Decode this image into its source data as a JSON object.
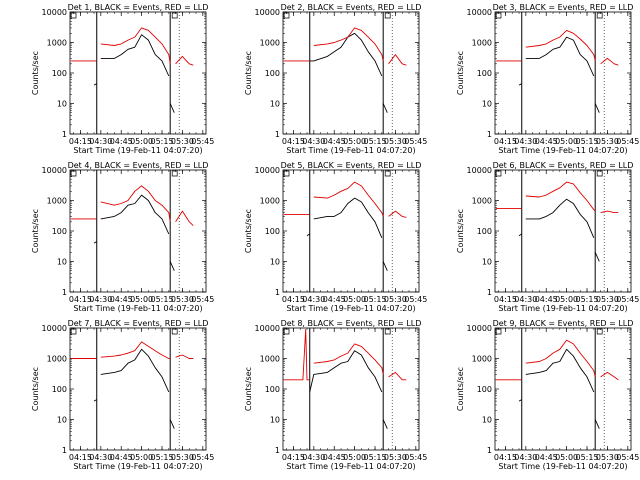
{
  "figure": {
    "xlabel": "Start Time (19-Feb-11 04:07:20)",
    "ylabel": "Counts/sec",
    "x_ticks": [
      "04:15",
      "04:30",
      "04:45",
      "05:00",
      "05:15",
      "05:30",
      "05:45"
    ],
    "y_ticks": [
      "1",
      "10",
      "100",
      "1000",
      "10000"
    ],
    "colors": {
      "events": "#000000",
      "lld": "#e00000"
    }
  },
  "chart_data": [
    {
      "type": "line",
      "title": "Det 1, BLACK = Events, RED = LLD",
      "ylim": [
        1,
        10000
      ],
      "yscale": "log",
      "x_range": [
        "04:07:20",
        "05:47:20"
      ],
      "gap": [
        "04:27:00",
        "05:21:00"
      ],
      "series": [
        {
          "name": "BLACK = Events",
          "x": [
            "04:25",
            "04:27",
            "04:27",
            "04:30",
            "04:40",
            "04:45",
            "04:50",
            "04:55",
            "05:00",
            "05:05",
            "05:10",
            "05:15",
            "05:20",
            "05:21",
            "05:21",
            "05:24"
          ],
          "y": [
            40,
            45,
            null,
            300,
            300,
            400,
            600,
            700,
            1800,
            1200,
            400,
            250,
            80,
            null,
            10,
            5
          ]
        },
        {
          "name": "RED = LLD",
          "x": [
            "04:08",
            "04:15",
            "04:27",
            "04:27",
            "04:30",
            "04:40",
            "04:45",
            "04:50",
            "04:55",
            "05:00",
            "05:05",
            "05:10",
            "05:15",
            "05:20",
            "05:21",
            "05:21",
            "05:25",
            "05:30",
            "05:35",
            "05:38"
          ],
          "y": [
            250,
            250,
            250,
            null,
            900,
            800,
            900,
            1200,
            1500,
            3000,
            2500,
            1500,
            900,
            400,
            200,
            null,
            200,
            350,
            200,
            180
          ]
        }
      ]
    },
    {
      "type": "line",
      "title": "Det 2, BLACK = Events, RED = LLD",
      "ylim": [
        1,
        10000
      ],
      "yscale": "log",
      "x_range": [
        "04:07:20",
        "05:47:20"
      ],
      "gap": [
        "04:27:00",
        "05:21:00"
      ],
      "series": [
        {
          "name": "BLACK = Events",
          "x": [
            "04:27",
            "04:30",
            "04:40",
            "04:45",
            "04:50",
            "04:55",
            "05:00",
            "05:05",
            "05:10",
            "05:15",
            "05:20",
            "05:21",
            "05:21",
            "05:24"
          ],
          "y": [
            250,
            250,
            350,
            500,
            700,
            1500,
            2000,
            1200,
            500,
            250,
            80,
            null,
            10,
            5
          ]
        },
        {
          "name": "RED = LLD",
          "x": [
            "04:08",
            "04:15",
            "04:27",
            "04:27",
            "04:30",
            "04:40",
            "04:45",
            "04:50",
            "04:55",
            "05:00",
            "05:05",
            "05:10",
            "05:15",
            "05:20",
            "05:21",
            "05:21",
            "05:25",
            "05:30",
            "05:35",
            "05:38"
          ],
          "y": [
            250,
            250,
            250,
            null,
            800,
            900,
            1000,
            1200,
            1500,
            3000,
            2500,
            1500,
            900,
            400,
            250,
            null,
            200,
            400,
            200,
            180
          ]
        }
      ]
    },
    {
      "type": "line",
      "title": "Det 3, BLACK = Events, RED = LLD",
      "ylim": [
        1,
        10000
      ],
      "yscale": "log",
      "x_range": [
        "04:07:20",
        "05:47:20"
      ],
      "gap": [
        "04:27:00",
        "05:21:00"
      ],
      "series": [
        {
          "name": "BLACK = Events",
          "x": [
            "04:25",
            "04:27",
            "04:27",
            "04:30",
            "04:40",
            "04:45",
            "04:50",
            "04:55",
            "05:00",
            "05:05",
            "05:10",
            "05:15",
            "05:20",
            "05:21",
            "05:21",
            "05:24"
          ],
          "y": [
            40,
            45,
            null,
            300,
            300,
            400,
            600,
            700,
            1500,
            1200,
            400,
            250,
            80,
            null,
            10,
            5
          ]
        },
        {
          "name": "RED = LLD",
          "x": [
            "04:08",
            "04:15",
            "04:27",
            "04:27",
            "04:30",
            "04:40",
            "04:45",
            "04:50",
            "04:55",
            "05:00",
            "05:05",
            "05:10",
            "05:15",
            "05:20",
            "05:21",
            "05:21",
            "05:25",
            "05:30",
            "05:35",
            "05:38"
          ],
          "y": [
            250,
            250,
            250,
            null,
            700,
            800,
            900,
            1200,
            1500,
            2500,
            2000,
            1300,
            800,
            400,
            250,
            null,
            200,
            300,
            200,
            180
          ]
        }
      ]
    },
    {
      "type": "line",
      "title": "Det 4, BLACK = Events, RED = LLD",
      "ylim": [
        1,
        10000
      ],
      "yscale": "log",
      "x_range": [
        "04:07:20",
        "05:47:20"
      ],
      "gap": [
        "04:27:00",
        "05:21:00"
      ],
      "series": [
        {
          "name": "BLACK = Events",
          "x": [
            "04:25",
            "04:27",
            "04:27",
            "04:30",
            "04:40",
            "04:45",
            "04:50",
            "04:55",
            "05:00",
            "05:05",
            "05:10",
            "05:15",
            "05:20",
            "05:21",
            "05:21",
            "05:24"
          ],
          "y": [
            40,
            45,
            null,
            250,
            300,
            400,
            700,
            800,
            1500,
            1000,
            400,
            250,
            80,
            null,
            10,
            5
          ]
        },
        {
          "name": "RED = LLD",
          "x": [
            "04:08",
            "04:15",
            "04:27",
            "04:27",
            "04:30",
            "04:40",
            "04:45",
            "04:50",
            "04:55",
            "05:00",
            "05:05",
            "05:10",
            "05:15",
            "05:20",
            "05:21",
            "05:21",
            "05:25",
            "05:30",
            "05:35",
            "05:38"
          ],
          "y": [
            250,
            250,
            250,
            null,
            900,
            700,
            800,
            1000,
            2000,
            3000,
            2000,
            1000,
            700,
            400,
            200,
            null,
            200,
            450,
            200,
            150
          ]
        }
      ]
    },
    {
      "type": "line",
      "title": "Det 5, BLACK = Events, RED = LLD",
      "ylim": [
        1,
        10000
      ],
      "yscale": "log",
      "x_range": [
        "04:07:20",
        "05:47:20"
      ],
      "gap": [
        "04:27:00",
        "05:21:00"
      ],
      "series": [
        {
          "name": "BLACK = Events",
          "x": [
            "04:25",
            "04:27",
            "04:27",
            "04:30",
            "04:40",
            "04:45",
            "04:50",
            "04:55",
            "05:00",
            "05:05",
            "05:10",
            "05:15",
            "05:20",
            "05:21",
            "05:21",
            "05:24"
          ],
          "y": [
            70,
            80,
            null,
            250,
            300,
            300,
            400,
            800,
            1200,
            900,
            400,
            200,
            60,
            null,
            10,
            5
          ]
        },
        {
          "name": "RED = LLD",
          "x": [
            "04:08",
            "04:15",
            "04:27",
            "04:27",
            "04:30",
            "04:40",
            "04:45",
            "04:50",
            "04:55",
            "05:00",
            "05:05",
            "05:10",
            "05:15",
            "05:20",
            "05:21",
            "05:21",
            "05:25",
            "05:30",
            "05:35",
            "05:38"
          ],
          "y": [
            350,
            350,
            350,
            null,
            1300,
            1200,
            1500,
            2000,
            2500,
            4000,
            3000,
            1500,
            800,
            400,
            300,
            null,
            300,
            450,
            300,
            280
          ]
        }
      ]
    },
    {
      "type": "line",
      "title": "Det 6, BLACK = Events, RED = LLD",
      "ylim": [
        1,
        10000
      ],
      "yscale": "log",
      "x_range": [
        "04:07:20",
        "05:47:20"
      ],
      "gap": [
        "04:27:00",
        "05:21:00"
      ],
      "series": [
        {
          "name": "BLACK = Events",
          "x": [
            "04:25",
            "04:27",
            "04:27",
            "04:30",
            "04:40",
            "04:45",
            "04:50",
            "04:55",
            "05:00",
            "05:05",
            "05:10",
            "05:15",
            "05:20",
            "05:21",
            "05:21",
            "05:24"
          ],
          "y": [
            70,
            80,
            null,
            250,
            250,
            300,
            400,
            700,
            1100,
            800,
            350,
            200,
            60,
            null,
            20,
            10
          ]
        },
        {
          "name": "RED = LLD",
          "x": [
            "04:08",
            "04:15",
            "04:27",
            "04:27",
            "04:30",
            "04:40",
            "04:45",
            "04:50",
            "04:55",
            "05:00",
            "05:05",
            "05:10",
            "05:15",
            "05:20",
            "05:21",
            "05:21",
            "05:25",
            "05:30",
            "05:35",
            "05:38"
          ],
          "y": [
            550,
            550,
            550,
            null,
            1400,
            1300,
            1500,
            2000,
            2600,
            4000,
            3500,
            1800,
            1000,
            500,
            450,
            null,
            400,
            450,
            400,
            400
          ]
        }
      ]
    },
    {
      "type": "line",
      "title": "Det 7, BLACK = Events, RED = LLD",
      "ylim": [
        1,
        10000
      ],
      "yscale": "log",
      "x_range": [
        "04:07:20",
        "05:47:20"
      ],
      "gap": [
        "04:27:00",
        "05:21:00"
      ],
      "series": [
        {
          "name": "BLACK = Events",
          "x": [
            "04:25",
            "04:27",
            "04:27",
            "04:30",
            "04:40",
            "04:45",
            "04:50",
            "04:55",
            "05:00",
            "05:05",
            "05:10",
            "05:15",
            "05:20",
            "05:21",
            "05:21",
            "05:24"
          ],
          "y": [
            40,
            45,
            null,
            300,
            350,
            400,
            700,
            900,
            2000,
            1200,
            500,
            250,
            80,
            null,
            10,
            5
          ]
        },
        {
          "name": "RED = LLD",
          "x": [
            "04:08",
            "04:15",
            "04:27",
            "04:27",
            "04:30",
            "04:40",
            "04:45",
            "04:50",
            "04:55",
            "05:00",
            "05:05",
            "05:10",
            "05:15",
            "05:20",
            "05:21",
            "05:21",
            "05:25",
            "05:30",
            "05:35",
            "05:38"
          ],
          "y": [
            1000,
            1000,
            1000,
            null,
            1100,
            1200,
            1300,
            1500,
            1800,
            3500,
            2500,
            1800,
            1300,
            1000,
            1000,
            null,
            1100,
            1300,
            1000,
            1000
          ]
        }
      ]
    },
    {
      "type": "line",
      "title": "Det 8, BLACK = Events, RED = LLD",
      "ylim": [
        1,
        10000
      ],
      "yscale": "log",
      "x_range": [
        "04:07:20",
        "05:47:20"
      ],
      "gap": [
        "04:27:00",
        "05:21:00"
      ],
      "series": [
        {
          "name": "BLACK = Events",
          "x": [
            "04:27",
            "04:30",
            "04:40",
            "04:45",
            "04:50",
            "04:55",
            "05:00",
            "05:05",
            "05:10",
            "05:15",
            "05:20",
            "05:21",
            "05:21",
            "05:24"
          ],
          "y": [
            80,
            300,
            350,
            500,
            700,
            800,
            1800,
            1300,
            500,
            250,
            80,
            null,
            10,
            5
          ]
        },
        {
          "name": "RED = LLD",
          "x": [
            "04:08",
            "04:15",
            "04:22",
            "04:24",
            "04:25",
            "04:27",
            "04:27",
            "04:30",
            "04:40",
            "04:45",
            "04:50",
            "04:55",
            "05:00",
            "05:05",
            "05:10",
            "05:15",
            "05:20",
            "05:21",
            "05:21",
            "05:25",
            "05:30",
            "05:35",
            "05:38"
          ],
          "y": [
            200,
            200,
            200,
            9000,
            200,
            200,
            null,
            700,
            800,
            900,
            1200,
            1500,
            3000,
            2500,
            1500,
            900,
            500,
            300,
            null,
            250,
            350,
            200,
            200
          ]
        }
      ]
    },
    {
      "type": "line",
      "title": "Det 9, BLACK = Events, RED = LLD",
      "ylim": [
        1,
        10000
      ],
      "yscale": "log",
      "x_range": [
        "04:07:20",
        "05:47:20"
      ],
      "gap": [
        "04:27:00",
        "05:21:00"
      ],
      "series": [
        {
          "name": "BLACK = Events",
          "x": [
            "04:25",
            "04:27",
            "04:27",
            "04:30",
            "04:40",
            "04:45",
            "04:50",
            "04:55",
            "05:00",
            "05:05",
            "05:10",
            "05:15",
            "05:20",
            "05:21",
            "05:21",
            "05:24"
          ],
          "y": [
            40,
            45,
            null,
            300,
            350,
            400,
            700,
            800,
            2000,
            1200,
            500,
            250,
            80,
            null,
            10,
            5
          ]
        },
        {
          "name": "RED = LLD",
          "x": [
            "04:08",
            "04:15",
            "04:27",
            "04:27",
            "04:30",
            "04:40",
            "04:45",
            "04:50",
            "04:55",
            "05:00",
            "05:05",
            "05:10",
            "05:15",
            "05:20",
            "05:21",
            "05:21",
            "05:25",
            "05:30",
            "05:35",
            "05:38"
          ],
          "y": [
            200,
            200,
            200,
            null,
            700,
            800,
            1000,
            1500,
            2000,
            4000,
            3000,
            1500,
            800,
            400,
            250,
            null,
            250,
            350,
            250,
            200
          ]
        }
      ]
    }
  ]
}
